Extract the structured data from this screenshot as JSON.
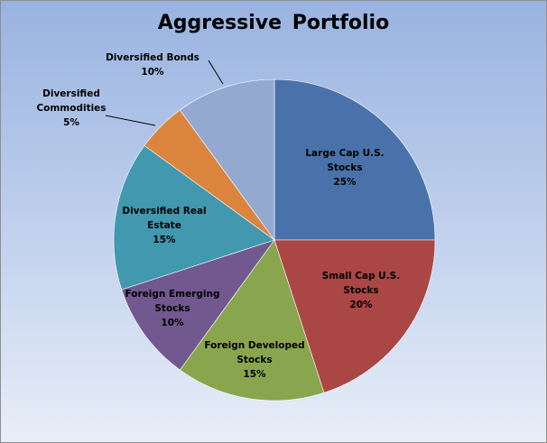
{
  "chart_data": {
    "type": "pie",
    "title": "Aggressive Portfolio",
    "legend": "none",
    "slices": [
      {
        "label_lines": [
          "Large Cap U.S.",
          "Stocks"
        ],
        "value": 25,
        "value_label": "25%",
        "color": "#4a72aa",
        "label_inside": true
      },
      {
        "label_lines": [
          "Small Cap U.S.",
          "Stocks"
        ],
        "value": 20,
        "value_label": "20%",
        "color": "#aa4644",
        "label_inside": true
      },
      {
        "label_lines": [
          "Foreign Developed",
          "Stocks"
        ],
        "value": 15,
        "value_label": "15%",
        "color": "#89a64e",
        "label_inside": true
      },
      {
        "label_lines": [
          "Foreign Emerging",
          "Stocks"
        ],
        "value": 10,
        "value_label": "10%",
        "color": "#71598f",
        "label_inside": true
      },
      {
        "label_lines": [
          "Diversified Real",
          "Estate"
        ],
        "value": 15,
        "value_label": "15%",
        "color": "#4198af",
        "label_inside": true
      },
      {
        "label_lines": [
          "Diversified",
          "Commodities"
        ],
        "value": 5,
        "value_label": "5%",
        "color": "#db843d",
        "label_inside": false
      },
      {
        "label_lines": [
          "Diversified Bonds"
        ],
        "value": 10,
        "value_label": "10%",
        "color": "#93a9cf",
        "label_inside": false
      }
    ]
  }
}
